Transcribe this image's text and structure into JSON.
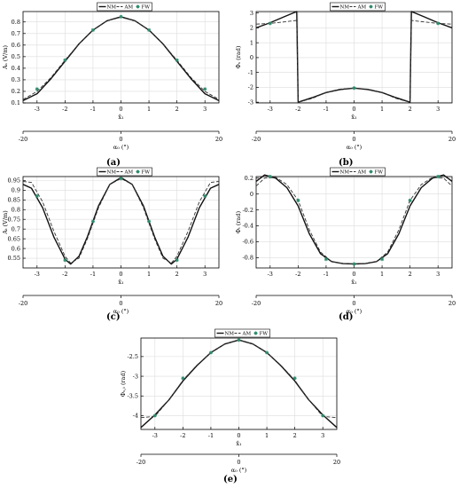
{
  "colors": {
    "nm": "#111111",
    "am": "#333333",
    "fw": "#2e8b6e",
    "grid": "#dcdcdc",
    "axis": "#000000"
  },
  "legend": {
    "nm": "NM",
    "am": "AM",
    "fw": "FW"
  },
  "chart_data": [
    {
      "id": "a",
      "type": "line",
      "label": "(a)",
      "ylabel": "Aₛ (V/m)",
      "xlabel": "x̂₁",
      "x2label": "α₀ (°)",
      "xlim": [
        -3.5,
        3.5
      ],
      "ylim": [
        0.1,
        0.89
      ],
      "xticks": [
        -3,
        -2,
        -1,
        0,
        1,
        2,
        3
      ],
      "yticks": [
        0.1,
        0.2,
        0.3,
        0.4,
        0.5,
        0.6,
        0.7,
        0.8
      ],
      "yticklabels": [
        "0.1",
        "0.2",
        "0.3",
        "0.4",
        "0.5",
        "0.6",
        "0.7",
        "0.8"
      ],
      "x2ticks": [
        -20,
        0,
        20
      ],
      "x": [
        -3.5,
        -3,
        -2.5,
        -2,
        -1.5,
        -1,
        -0.5,
        0,
        0.5,
        1,
        1.5,
        2,
        2.5,
        3,
        3.5
      ],
      "series": [
        {
          "name": "NM",
          "style": "solid",
          "values": [
            0.12,
            0.18,
            0.31,
            0.46,
            0.61,
            0.73,
            0.81,
            0.845,
            0.81,
            0.73,
            0.61,
            0.46,
            0.31,
            0.18,
            0.12
          ]
        },
        {
          "name": "AM",
          "style": "dashed",
          "values": [
            0.13,
            0.2,
            0.32,
            0.47,
            0.61,
            0.73,
            0.81,
            0.84,
            0.81,
            0.73,
            0.61,
            0.47,
            0.32,
            0.2,
            0.13
          ]
        },
        {
          "name": "FW",
          "style": "markers",
          "x": [
            -3,
            -2,
            -1,
            0,
            1,
            2,
            3
          ],
          "values": [
            0.22,
            0.47,
            0.73,
            0.845,
            0.73,
            0.47,
            0.22
          ]
        }
      ]
    },
    {
      "id": "b",
      "type": "line",
      "label": "(b)",
      "ylabel": "Φₛ (rad)",
      "xlabel": "x̂₁",
      "x2label": "α₀ (°)",
      "xlim": [
        -3.5,
        3.5
      ],
      "ylim": [
        -3.05,
        3.1
      ],
      "xticks": [
        -3,
        -2,
        -1,
        0,
        1,
        2,
        3
      ],
      "yticks": [
        -3,
        -2,
        -1,
        0,
        1,
        2,
        3
      ],
      "yticklabels": [
        "-3",
        "-2",
        "-1",
        "0",
        "1",
        "2",
        "3"
      ],
      "x2ticks": [
        -20,
        0,
        20
      ],
      "x": [
        -3.5,
        -3,
        -2.5,
        -2.05,
        -2.0,
        -1.5,
        -1,
        -0.5,
        0,
        0.5,
        1,
        1.5,
        2.0,
        2.05,
        2.5,
        3,
        3.5
      ],
      "series": [
        {
          "name": "NM",
          "style": "solid",
          "values": [
            2.0,
            2.35,
            2.75,
            3.1,
            -3.0,
            -2.7,
            -2.35,
            -2.15,
            -2.05,
            -2.15,
            -2.35,
            -2.7,
            -3.0,
            3.1,
            2.75,
            2.35,
            2.0
          ]
        },
        {
          "name": "AM",
          "style": "dashed",
          "values": [
            2.25,
            2.3,
            2.4,
            2.5,
            -3.0,
            -2.75,
            -2.35,
            -2.12,
            -2.05,
            -2.12,
            -2.35,
            -2.75,
            -3.0,
            2.5,
            2.4,
            2.3,
            2.25
          ]
        },
        {
          "name": "FW",
          "style": "markers",
          "x": [
            -3,
            0,
            3
          ],
          "values": [
            2.3,
            -2.05,
            2.3
          ]
        }
      ]
    },
    {
      "id": "c",
      "type": "line",
      "label": "(c)",
      "ylabel": "Aₜ (V/m)",
      "xlabel": "x̂₁",
      "x2label": "α₀ (°)",
      "xlim": [
        -3.5,
        3.5
      ],
      "ylim": [
        0.5,
        0.97
      ],
      "xticks": [
        -3,
        -2,
        -1,
        0,
        1,
        2,
        3
      ],
      "yticks": [
        0.55,
        0.6,
        0.65,
        0.7,
        0.75,
        0.8,
        0.85,
        0.9,
        0.95
      ],
      "yticklabels": [
        "0.55",
        "0.6",
        "0.65",
        "0.7",
        "0.75",
        "0.8",
        "0.85",
        "0.9",
        "0.95"
      ],
      "x2ticks": [
        -20,
        0,
        20
      ],
      "x": [
        -3.5,
        -3.2,
        -2.8,
        -2.4,
        -2.0,
        -1.8,
        -1.5,
        -1.2,
        -0.8,
        -0.4,
        0,
        0.4,
        0.8,
        1.2,
        1.5,
        1.8,
        2.0,
        2.4,
        2.8,
        3.2,
        3.5
      ],
      "series": [
        {
          "name": "NM",
          "style": "solid",
          "values": [
            0.93,
            0.91,
            0.81,
            0.66,
            0.545,
            0.52,
            0.56,
            0.66,
            0.82,
            0.93,
            0.965,
            0.93,
            0.82,
            0.66,
            0.56,
            0.52,
            0.545,
            0.66,
            0.81,
            0.91,
            0.93
          ]
        },
        {
          "name": "AM",
          "style": "dashed",
          "values": [
            0.945,
            0.94,
            0.84,
            0.69,
            0.56,
            0.525,
            0.55,
            0.65,
            0.81,
            0.93,
            0.96,
            0.93,
            0.81,
            0.65,
            0.55,
            0.525,
            0.56,
            0.69,
            0.84,
            0.94,
            0.945
          ]
        },
        {
          "name": "FW",
          "style": "markers",
          "x": [
            -3,
            -2,
            -1,
            0,
            1,
            2,
            3
          ],
          "values": [
            0.87,
            0.54,
            0.74,
            0.96,
            0.74,
            0.54,
            0.87
          ]
        }
      ]
    },
    {
      "id": "d",
      "type": "line",
      "label": "(d)",
      "ylabel": "Φₜ (rad)",
      "xlabel": "x̂₁",
      "x2label": "α₀ (°)",
      "xlim": [
        -3.5,
        3.5
      ],
      "ylim": [
        -0.93,
        0.22
      ],
      "xticks": [
        -3,
        -2,
        -1,
        0,
        1,
        2,
        3
      ],
      "yticks": [
        -0.8,
        -0.6,
        -0.4,
        -0.2,
        0,
        0.2
      ],
      "yticklabels": [
        "-0.8",
        "-0.6",
        "-0.4",
        "-0.2",
        "0",
        "0.2"
      ],
      "x2ticks": [
        -20,
        0,
        20
      ],
      "x": [
        -3.5,
        -3.2,
        -2.8,
        -2.4,
        -2.0,
        -1.6,
        -1.2,
        -0.8,
        -0.4,
        0,
        0.4,
        0.8,
        1.2,
        1.6,
        2.0,
        2.4,
        2.8,
        3.2,
        3.5
      ],
      "series": [
        {
          "name": "NM",
          "style": "solid",
          "values": [
            0.16,
            0.24,
            0.2,
            0.08,
            -0.15,
            -0.5,
            -0.75,
            -0.85,
            -0.875,
            -0.88,
            -0.875,
            -0.85,
            -0.75,
            -0.5,
            -0.15,
            0.08,
            0.2,
            0.24,
            0.16
          ]
        },
        {
          "name": "AM",
          "style": "dashed",
          "values": [
            0.1,
            0.2,
            0.21,
            0.12,
            -0.08,
            -0.45,
            -0.73,
            -0.85,
            -0.875,
            -0.88,
            -0.875,
            -0.85,
            -0.73,
            -0.45,
            -0.08,
            0.12,
            0.21,
            0.2,
            0.1
          ]
        },
        {
          "name": "FW",
          "style": "markers",
          "x": [
            -3,
            -2,
            -1,
            0,
            1,
            2,
            3
          ],
          "values": [
            0.22,
            -0.08,
            -0.82,
            -0.88,
            -0.82,
            -0.08,
            0.22
          ]
        }
      ]
    },
    {
      "id": "e",
      "type": "line",
      "label": "(e)",
      "ylabel": "Φₛ,ₜ (rad)",
      "xlabel": "x̂₁",
      "x2label": "α₀ (°)",
      "xlim": [
        -3.5,
        3.5
      ],
      "ylim": [
        -4.35,
        -2.03
      ],
      "xticks": [
        -3,
        -2,
        -1,
        0,
        1,
        2,
        3
      ],
      "yticks": [
        -4,
        -3.5,
        -3,
        -2.5
      ],
      "yticklabels": [
        "-4",
        "-3.5",
        "-3",
        "-2.5"
      ],
      "x2ticks": [
        -20,
        0,
        20
      ],
      "x": [
        -3.5,
        -3,
        -2.5,
        -2,
        -1.5,
        -1,
        -0.5,
        0,
        0.5,
        1,
        1.5,
        2,
        2.5,
        3,
        3.5
      ],
      "series": [
        {
          "name": "NM",
          "style": "solid",
          "values": [
            -4.3,
            -3.98,
            -3.6,
            -3.12,
            -2.73,
            -2.4,
            -2.18,
            -2.08,
            -2.18,
            -2.4,
            -2.73,
            -3.12,
            -3.6,
            -3.98,
            -4.3
          ]
        },
        {
          "name": "AM",
          "style": "dashed",
          "values": [
            -4.05,
            -4.02,
            -3.6,
            -3.1,
            -2.72,
            -2.4,
            -2.18,
            -2.08,
            -2.18,
            -2.4,
            -2.72,
            -3.1,
            -3.6,
            -4.02,
            -4.05
          ]
        },
        {
          "name": "FW",
          "style": "markers",
          "x": [
            -3,
            -2,
            -1,
            0,
            1,
            2,
            3
          ],
          "values": [
            -4.0,
            -3.05,
            -2.4,
            -2.08,
            -2.4,
            -3.05,
            -4.0
          ]
        }
      ]
    }
  ]
}
